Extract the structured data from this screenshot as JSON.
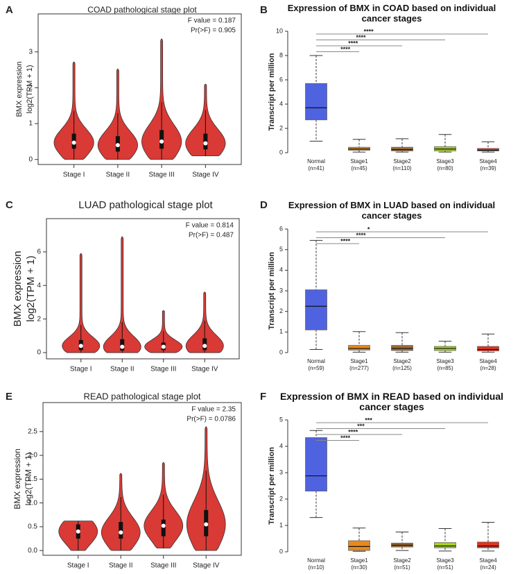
{
  "chart_data": [
    {
      "type": "violin",
      "panel_label": "A",
      "title": "COAD pathological stage plot",
      "annotations": [
        "F value = 0.187",
        "Pr(>F) = 0.905"
      ],
      "y_label": [
        "BMX expression",
        "log2(TPM + 1)"
      ],
      "categories": [
        "Stage I",
        "Stage II",
        "Stage III",
        "Stage IV"
      ],
      "min": [
        0,
        0,
        0,
        0.1
      ],
      "q1": [
        0.3,
        0.22,
        0.3,
        0.28
      ],
      "median": [
        0.47,
        0.4,
        0.5,
        0.45
      ],
      "q3": [
        0.72,
        0.65,
        0.82,
        0.72
      ],
      "max": [
        2.72,
        2.52,
        3.36,
        2.1
      ],
      "color": "#d93a35",
      "ylim": [
        -0.14,
        4.06
      ],
      "yticks": [
        0,
        1,
        2,
        3
      ]
    },
    {
      "type": "box",
      "panel_label": "B",
      "title": "Expression of BMX in COAD based on individual cancer stages",
      "y_label": "Transcript per million",
      "categories": [
        "Normal",
        "Stage1",
        "Stage2",
        "Stage3",
        "Stage4"
      ],
      "sample_sizes": [
        "(n=41)",
        "(n=45)",
        "(n=110)",
        "(n=80)",
        "(n=39)"
      ],
      "colors": [
        "#4f63e0",
        "#e8891d",
        "#9b6b35",
        "#a5d21b",
        "#e0331f"
      ],
      "whisker_low": [
        0.95,
        0.05,
        0.05,
        0.05,
        0.05
      ],
      "q1": [
        2.7,
        0.2,
        0.15,
        0.15,
        0.15
      ],
      "median": [
        3.7,
        0.3,
        0.25,
        0.3,
        0.2
      ],
      "q3": [
        5.7,
        0.45,
        0.45,
        0.5,
        0.35
      ],
      "whisker_high": [
        8.0,
        1.1,
        1.15,
        1.5,
        0.9
      ],
      "ylim": [
        0,
        10
      ],
      "yticks": [
        0,
        2,
        4,
        6,
        8,
        10
      ],
      "comparisons": [
        {
          "group": "Stage4",
          "label": "****"
        },
        {
          "group": "Stage3",
          "label": "****"
        },
        {
          "group": "Stage2",
          "label": "****"
        },
        {
          "group": "Stage1",
          "label": "****"
        }
      ]
    },
    {
      "type": "violin",
      "panel_label": "C",
      "title": "LUAD pathological stage plot",
      "annotations": [
        "F value = 0.814",
        "Pr(>F) = 0.487"
      ],
      "y_label": [
        "BMX expression",
        "log2(TPM + 1)"
      ],
      "categories": [
        "Stage I",
        "Stage II",
        "Stage III",
        "Stage IV"
      ],
      "min": [
        0,
        0,
        0,
        0
      ],
      "q1": [
        0.15,
        0.12,
        0.15,
        0.15
      ],
      "median": [
        0.4,
        0.35,
        0.35,
        0.4
      ],
      "q3": [
        0.75,
        0.8,
        0.6,
        0.85
      ],
      "max": [
        5.9,
        6.9,
        2.5,
        3.6
      ],
      "color": "#d93a35",
      "ylim": [
        -0.37,
        7.98
      ],
      "yticks": [
        0,
        2,
        4,
        6
      ]
    },
    {
      "type": "box",
      "panel_label": "D",
      "title": "Expression of BMX in LUAD based on individual cancer stages",
      "y_label": "Transcript per million",
      "categories": [
        "Normal",
        "Stage1",
        "Stage2",
        "Stage3",
        "Stage4"
      ],
      "sample_sizes": [
        "(n=59)",
        "(n=277)",
        "(n=125)",
        "(n=85)",
        "(n=28)"
      ],
      "colors": [
        "#4f63e0",
        "#e8891d",
        "#9b6b35",
        "#a5d21b",
        "#e0331f"
      ],
      "whisker_low": [
        0.15,
        0.02,
        0.02,
        0.02,
        0.02
      ],
      "q1": [
        1.1,
        0.12,
        0.1,
        0.1,
        0.08
      ],
      "median": [
        2.25,
        0.2,
        0.2,
        0.2,
        0.15
      ],
      "q3": [
        3.05,
        0.35,
        0.35,
        0.3,
        0.3
      ],
      "whisker_high": [
        5.45,
        1.02,
        0.97,
        0.55,
        0.9
      ],
      "ylim": [
        0,
        6
      ],
      "yticks": [
        0,
        1,
        2,
        3,
        4,
        5,
        6
      ],
      "comparisons": [
        {
          "group": "Stage4",
          "label": "*"
        },
        {
          "group": "Stage3",
          "label": "****"
        },
        {
          "group": "Stage1",
          "label": "****"
        }
      ]
    },
    {
      "type": "violin",
      "panel_label": "E",
      "title": "READ pathological stage plot",
      "annotations": [
        "F value = 2.35",
        "Pr(>F) = 0.0786"
      ],
      "y_label": [
        "BMX expression",
        "log2(TPM + 1)"
      ],
      "categories": [
        "Stage I",
        "Stage II",
        "Stage III",
        "Stage IV"
      ],
      "min": [
        0,
        0,
        0.05,
        0
      ],
      "q1": [
        0.25,
        0.25,
        0.3,
        0.3
      ],
      "median": [
        0.4,
        0.38,
        0.52,
        0.55
      ],
      "q3": [
        0.55,
        0.6,
        0.65,
        0.85
      ],
      "max": [
        0.62,
        1.62,
        1.85,
        2.6
      ],
      "color": "#d93a35",
      "ylim": [
        -0.1,
        3.11
      ],
      "yticks": [
        {
          "value": 0,
          "label": "0.0"
        },
        {
          "value": 0.5,
          "label": "0.5"
        },
        {
          "value": 1,
          "label": "1.0"
        },
        {
          "value": 1.5,
          "label": "1.5"
        },
        {
          "value": 2,
          "label": "2.0"
        },
        {
          "value": 2.5,
          "label": "2.5"
        }
      ]
    },
    {
      "type": "box",
      "panel_label": "F",
      "title": "Expression of BMX in READ based on individual cancer stages",
      "y_label": "Transcript per million",
      "categories": [
        "Normal",
        "Stage1",
        "Stage2",
        "Stage3",
        "Stage4"
      ],
      "sample_sizes": [
        "(n=10)",
        "(n=30)",
        "(n=51)",
        "(n=51)",
        "(n=24)"
      ],
      "colors": [
        "#4f63e0",
        "#e8891d",
        "#9b6b35",
        "#a5d21b",
        "#e0331f"
      ],
      "whisker_low": [
        1.3,
        0.02,
        0.05,
        0.03,
        0.03
      ],
      "q1": [
        2.3,
        0.05,
        0.18,
        0.15,
        0.15
      ],
      "median": [
        2.88,
        0.2,
        0.25,
        0.22,
        0.22
      ],
      "q3": [
        4.33,
        0.42,
        0.33,
        0.35,
        0.37
      ],
      "whisker_high": [
        4.6,
        0.9,
        0.75,
        0.88,
        1.12
      ],
      "ylim": [
        0,
        5
      ],
      "yticks": [
        0,
        1,
        2,
        3,
        4,
        5
      ],
      "comparisons": [
        {
          "group": "Stage4",
          "label": "***"
        },
        {
          "group": "Stage3",
          "label": "***"
        },
        {
          "group": "Stage2",
          "label": "****"
        },
        {
          "group": "Stage1",
          "label": "****"
        }
      ]
    }
  ]
}
